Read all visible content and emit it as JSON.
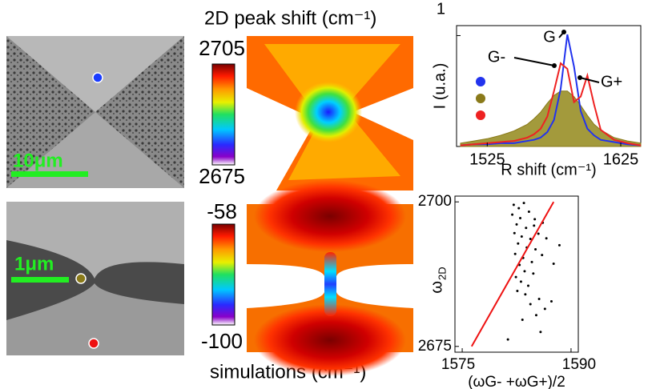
{
  "figure": {
    "title": "2D peak shift (cm⁻¹)",
    "caption": "simulations (cm⁻¹)",
    "scale_bars": [
      "10μm",
      "1μm"
    ],
    "colorbar_top": {
      "ticks": [
        2705,
        2675
      ]
    },
    "colorbar_bottom": {
      "ticks": [
        -58,
        -100
      ]
    }
  },
  "chart_data": [
    {
      "type": "line",
      "ylabel": "I (u.a.)",
      "xlabel": "R shift (cm⁻¹)",
      "xlim": [
        1502,
        1640
      ],
      "xticks": [
        1525,
        1625
      ],
      "ylim": [
        0,
        1.09
      ],
      "yticks": [
        1
      ],
      "annotations": [
        "G",
        "G-",
        "G+"
      ],
      "x": [
        1505,
        1515,
        1525,
        1535,
        1545,
        1555,
        1560,
        1565,
        1570,
        1575,
        1580,
        1585,
        1590,
        1595,
        1600,
        1605,
        1610,
        1620,
        1630,
        1640
      ],
      "series": [
        {
          "color": "#8a7a1a",
          "fill": "#a39a3c",
          "values": [
            0.03,
            0.05,
            0.07,
            0.1,
            0.14,
            0.2,
            0.25,
            0.31,
            0.39,
            0.46,
            0.5,
            0.5,
            0.45,
            0.37,
            0.28,
            0.2,
            0.15,
            0.08,
            0.05,
            0.03
          ]
        },
        {
          "color": "#2233ee",
          "values": [
            0.01,
            0.02,
            0.02,
            0.03,
            0.03,
            0.05,
            0.06,
            0.08,
            0.13,
            0.24,
            0.52,
            1.01,
            0.72,
            0.32,
            0.16,
            0.1,
            0.06,
            0.04,
            0.02,
            0.01
          ]
        },
        {
          "color": "#ee2222",
          "values": [
            0.01,
            0.02,
            0.03,
            0.04,
            0.05,
            0.08,
            0.11,
            0.16,
            0.27,
            0.5,
            0.75,
            0.7,
            0.4,
            0.45,
            0.64,
            0.38,
            0.15,
            0.06,
            0.03,
            0.01
          ]
        }
      ]
    },
    {
      "type": "scatter",
      "ylabel": "ω",
      "ylabel_sub": "2D",
      "xlabel": "(ωG- +ωG+)/2",
      "xlim": [
        1574,
        1591
      ],
      "xticks": [
        1575,
        1590
      ],
      "ylim": [
        2674,
        2701
      ],
      "yticks": [
        2700,
        2675
      ],
      "color": "#000000",
      "x": [
        1582.1,
        1582.8,
        1583.5,
        1581.9,
        1583,
        1584.2,
        1585,
        1582.5,
        1583.8,
        1584.9,
        1586.1,
        1582.2,
        1583.2,
        1584.4,
        1585.5,
        1586.6,
        1582.7,
        1583.9,
        1585.1,
        1582.3,
        1583.4,
        1584.6,
        1586,
        1582.9,
        1583.6,
        1584.8,
        1582.4,
        1583.1,
        1584.1,
        1582.6,
        1583.7,
        1585.6,
        1584.4,
        1586.4,
        1585.2,
        1583.3,
        1587.3,
        1585.8,
        1581.3,
        1588.4,
        1587.6
      ],
      "y": [
        2699.5,
        2698.9,
        2699.8,
        2697.8,
        2697.2,
        2698.3,
        2697,
        2696.1,
        2695.5,
        2695.9,
        2696.4,
        2694.6,
        2694,
        2693.6,
        2694.5,
        2693.7,
        2692.8,
        2692.1,
        2691.8,
        2691,
        2690.3,
        2689.6,
        2690.8,
        2689.1,
        2688,
        2687.6,
        2687,
        2686.2,
        2685.5,
        2684.6,
        2684,
        2683.2,
        2682.3,
        2681.5,
        2680.4,
        2679.6,
        2682.8,
        2677.5,
        2676.2,
        2692.5,
        2689.3
      ],
      "fit": {
        "color": "#ee1111",
        "x": [
          1576.3,
          1587.6
        ],
        "y": [
          2675,
          2700
        ]
      }
    }
  ]
}
